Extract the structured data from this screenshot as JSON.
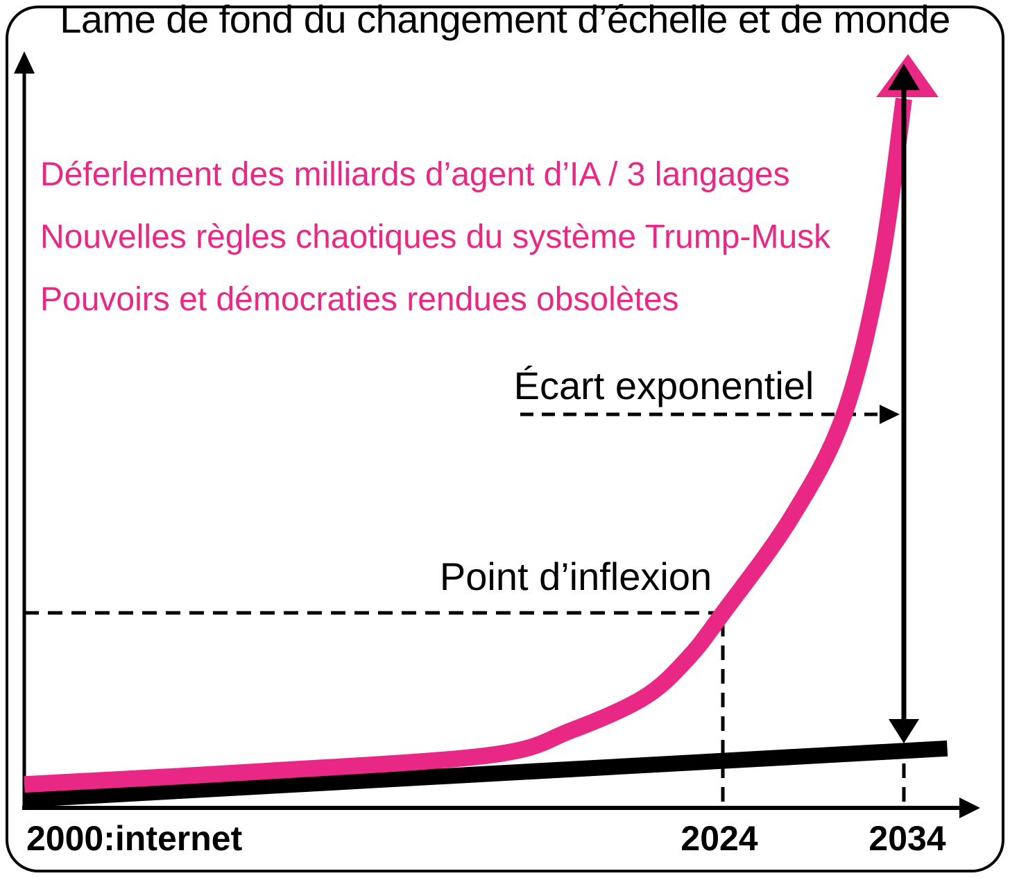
{
  "title": "Lame de fond du changement d’échelle et de monde",
  "highlights": {
    "lines": [
      "Déferlement des milliards d’agent d’IA / 3 langages",
      "Nouvelles règles chaotiques du système Trump-Musk",
      "Pouvoirs et démocraties rendues obsolètes"
    ]
  },
  "labels": {
    "gap": "Écart exponentiel",
    "inflexion": "Point d’inflexion"
  },
  "x_axis": {
    "origin": "2000:internet",
    "ticks": [
      "2024",
      "2034"
    ]
  },
  "colors": {
    "pink": "#E92784",
    "black": "#000000"
  },
  "chart_data": {
    "type": "line",
    "title": "Lame de fond du changement d’échelle et de monde",
    "xlabel": "",
    "ylabel": "",
    "x_ticks": [
      {
        "year": 2000,
        "label": "2000:internet"
      },
      {
        "year": 2024,
        "label": "2024"
      },
      {
        "year": 2034,
        "label": "2034"
      }
    ],
    "ylim": [
      0,
      100
    ],
    "grid": false,
    "legend": "none",
    "series": [
      {
        "name": "linear-baseline-black",
        "color": "#000000",
        "style": "straight-thick",
        "points": [
          [
            2000,
            1.4
          ],
          [
            2036.4,
            8.2
          ]
        ]
      },
      {
        "name": "exponential-surge-pink",
        "color": "#E92784",
        "style": "smooth-thick-arrow-up",
        "points": [
          [
            2000,
            3.4
          ],
          [
            2008,
            5.1
          ],
          [
            2016,
            7.3
          ],
          [
            2018.8,
            10.6
          ],
          [
            2021.3,
            15
          ],
          [
            2022.8,
            20.2
          ],
          [
            2024,
            26.2
          ],
          [
            2027.8,
            39
          ],
          [
            2030.7,
            52.7
          ],
          [
            2032.7,
            72.3
          ],
          [
            2034,
            94.7
          ]
        ]
      }
    ],
    "annotations": [
      {
        "label": "Écart exponentiel",
        "type": "dashed-arrow-to-vertical-gap-arrow",
        "gap_at_year": 2034
      },
      {
        "label": "Point d’inflexion",
        "type": "dashed-crosshair-on-curve",
        "at_year": 2024
      }
    ]
  }
}
